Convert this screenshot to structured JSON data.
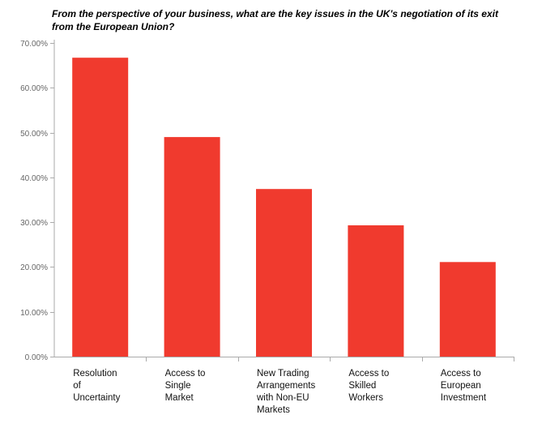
{
  "chart_data": {
    "type": "bar",
    "title": "From the perspective of your business, what are the key issues in the UK's negotiation of its exit from the European Union?",
    "categories": [
      "Resolution of Uncertainty",
      "Access to Single Market",
      "New Trading Arrangements with Non-EU Markets",
      "Access to Skilled Workers",
      "Access to European Investment"
    ],
    "category_lines": [
      [
        "Resolution",
        "of",
        "Uncertainty"
      ],
      [
        "Access to",
        "Single",
        "Market"
      ],
      [
        "New Trading",
        "Arrangements",
        "with Non-EU",
        "Markets"
      ],
      [
        "Access to",
        "Skilled",
        "Workers"
      ],
      [
        "Access to",
        "European",
        "Investment"
      ]
    ],
    "values": [
      66.7,
      49.0,
      37.4,
      29.3,
      21.1
    ],
    "ylim": [
      0,
      70
    ],
    "yticks": [
      0,
      10,
      20,
      30,
      40,
      50,
      60,
      70
    ],
    "ytick_labels": [
      "0.00%",
      "10.00%",
      "20.00%",
      "30.00%",
      "40.00%",
      "50.00%",
      "60.00%",
      "70.00%"
    ],
    "xlabel": "",
    "ylabel": "",
    "grid": false,
    "bar_color": "#f03a2e",
    "axis_color": "#aaaaaa"
  }
}
